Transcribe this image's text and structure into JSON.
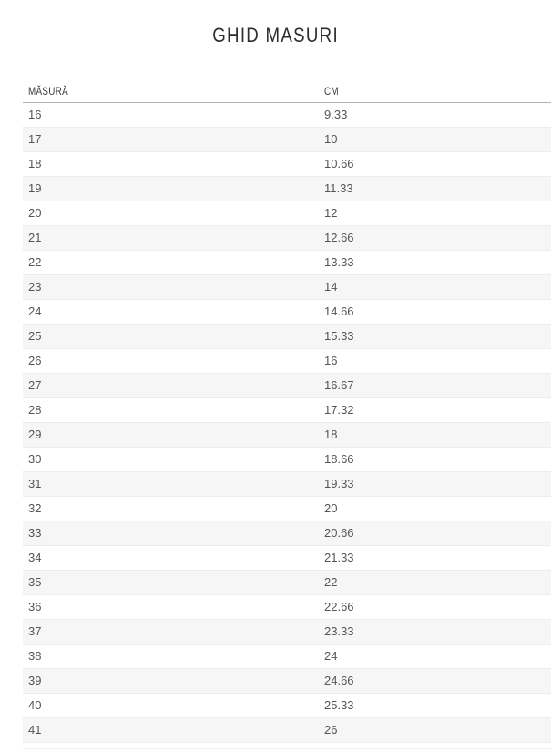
{
  "header": {
    "title": "GHID MASURI"
  },
  "table": {
    "columns": [
      "MĂSURĂ",
      "CM"
    ],
    "rows": [
      [
        "16",
        "9.33"
      ],
      [
        "17",
        "10"
      ],
      [
        "18",
        "10.66"
      ],
      [
        "19",
        "11.33"
      ],
      [
        "20",
        "12"
      ],
      [
        "21",
        "12.66"
      ],
      [
        "22",
        "13.33"
      ],
      [
        "23",
        "14"
      ],
      [
        "24",
        "14.66"
      ],
      [
        "25",
        "15.33"
      ],
      [
        "26",
        "16"
      ],
      [
        "27",
        "16.67"
      ],
      [
        "28",
        "17.32"
      ],
      [
        "29",
        "18"
      ],
      [
        "30",
        "18.66"
      ],
      [
        "31",
        "19.33"
      ],
      [
        "32",
        "20"
      ],
      [
        "33",
        "20.66"
      ],
      [
        "34",
        "21.33"
      ],
      [
        "35",
        "22"
      ],
      [
        "36",
        "22.66"
      ],
      [
        "37",
        "23.33"
      ],
      [
        "38",
        "24"
      ],
      [
        "39",
        "24.66"
      ],
      [
        "40",
        "25.33"
      ],
      [
        "41",
        "26"
      ]
    ]
  },
  "colors": {
    "title_text": "#2e2e2e",
    "header_text": "#3a3a3a",
    "cell_text": "#555555",
    "stripe": "#f6f6f6",
    "header_border": "#b3b3b3",
    "row_border": "#ececec",
    "background": "#ffffff"
  }
}
